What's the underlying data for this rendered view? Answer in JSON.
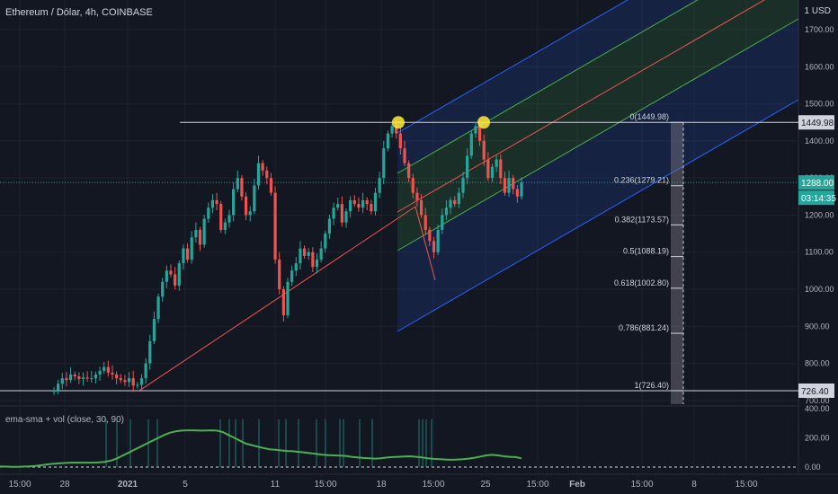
{
  "header": {
    "symbol_title": "Ethereum / Dólar, 4h, COINBASE",
    "currency": "1  USD"
  },
  "indicator": {
    "label": "ema-sma + vol (close, 30, 90)"
  },
  "colors": {
    "bg": "#131722",
    "up": "#26a69a",
    "down": "#ef5350",
    "grid": "#1e222d",
    "text": "#b2b5be",
    "white": "#d1d4dc",
    "channel_blue": "#2962ff",
    "channel_green": "#4caf50",
    "trend": "#ef5350",
    "highlight": "#ffeb3b"
  },
  "chart_data": {
    "type": "candlestick",
    "title": "Ethereum / Dólar, 4h, COINBASE",
    "y_axis": {
      "ylim": [
        690,
        1780
      ],
      "ticks": [
        700,
        800,
        900,
        1000,
        1100,
        1200,
        1300,
        1400,
        1500,
        1600,
        1700
      ],
      "tick_labels": [
        "700.00",
        "800.00",
        "900.00",
        "1000.00",
        "1100.00",
        "1200.00",
        "1300.00",
        "1400.00",
        "1500.00",
        "1600.00",
        "1700.00"
      ]
    },
    "x_axis": {
      "ticks": [
        "15:00",
        "28",
        "2021",
        "5",
        "11",
        "15:00",
        "18",
        "15:00",
        "25",
        "15:00",
        "Feb",
        "15:00",
        "8",
        "15:00"
      ]
    },
    "price_labels": {
      "level_top": "1449.98",
      "last": "1288.00",
      "countdown": "03:14:35",
      "level_bottom": "726.40"
    },
    "fib_levels": [
      {
        "label": "0(1449.98)",
        "value": 1449.98
      },
      {
        "label": "0.236(1279.21)",
        "value": 1279.21
      },
      {
        "label": "0.382(1173.57)",
        "value": 1173.57
      },
      {
        "label": "0.5(1088.19)",
        "value": 1088.19
      },
      {
        "label": "0.618(1002.80)",
        "value": 1002.8
      },
      {
        "label": "0.786(881.24)",
        "value": 881.24
      },
      {
        "label": "1(726.40)",
        "value": 726.4
      }
    ],
    "candles_close": [
      728,
      745,
      760,
      755,
      770,
      765,
      758,
      762,
      759,
      760,
      770,
      780,
      790,
      775,
      770,
      760,
      755,
      750,
      760,
      740,
      742,
      760,
      800,
      860,
      920,
      980,
      1020,
      1050,
      1040,
      1010,
      1070,
      1110,
      1080,
      1140,
      1160,
      1120,
      1190,
      1220,
      1240,
      1230,
      1160,
      1180,
      1200,
      1270,
      1300,
      1250,
      1200,
      1210,
      1280,
      1340,
      1320,
      1300,
      1260,
      1080,
      1000,
      930,
      1020,
      1050,
      1070,
      1110,
      1090,
      1100,
      1060,
      1080,
      1110,
      1150,
      1190,
      1220,
      1230,
      1180,
      1210,
      1240,
      1230,
      1220,
      1240,
      1230,
      1210,
      1260,
      1300,
      1380,
      1420,
      1440,
      1420,
      1380,
      1340,
      1300,
      1260,
      1240,
      1200,
      1160,
      1130,
      1100,
      1160,
      1200,
      1220,
      1240,
      1230,
      1260,
      1300,
      1360,
      1420,
      1440,
      1400,
      1350,
      1300,
      1330,
      1350,
      1300,
      1260,
      1300,
      1270,
      1250,
      1288
    ],
    "ema_sma_indicator": {
      "ylim": [
        0,
        400
      ],
      "ticks": [
        0,
        200,
        400
      ],
      "tick_labels": [
        "0.00",
        "200.00",
        "400.00"
      ],
      "values": [
        4,
        3,
        2,
        2,
        3,
        5,
        8,
        12,
        18,
        22,
        25,
        28,
        30,
        31,
        30,
        30,
        30,
        32,
        36,
        45,
        60,
        80,
        100,
        120,
        140,
        160,
        180,
        200,
        220,
        235,
        245,
        250,
        252,
        252,
        250,
        250,
        252,
        250,
        240,
        220,
        200,
        180,
        160,
        150,
        140,
        130,
        122,
        118,
        114,
        110,
        108,
        104,
        100,
        95,
        90,
        85,
        82,
        80,
        78,
        76,
        70,
        66,
        62,
        60,
        58,
        60,
        65,
        68,
        70,
        72,
        74,
        70,
        66,
        60,
        56,
        54,
        52,
        50,
        52,
        54,
        58,
        64,
        72,
        80,
        84,
        80,
        74,
        70,
        68,
        60
      ]
    }
  }
}
